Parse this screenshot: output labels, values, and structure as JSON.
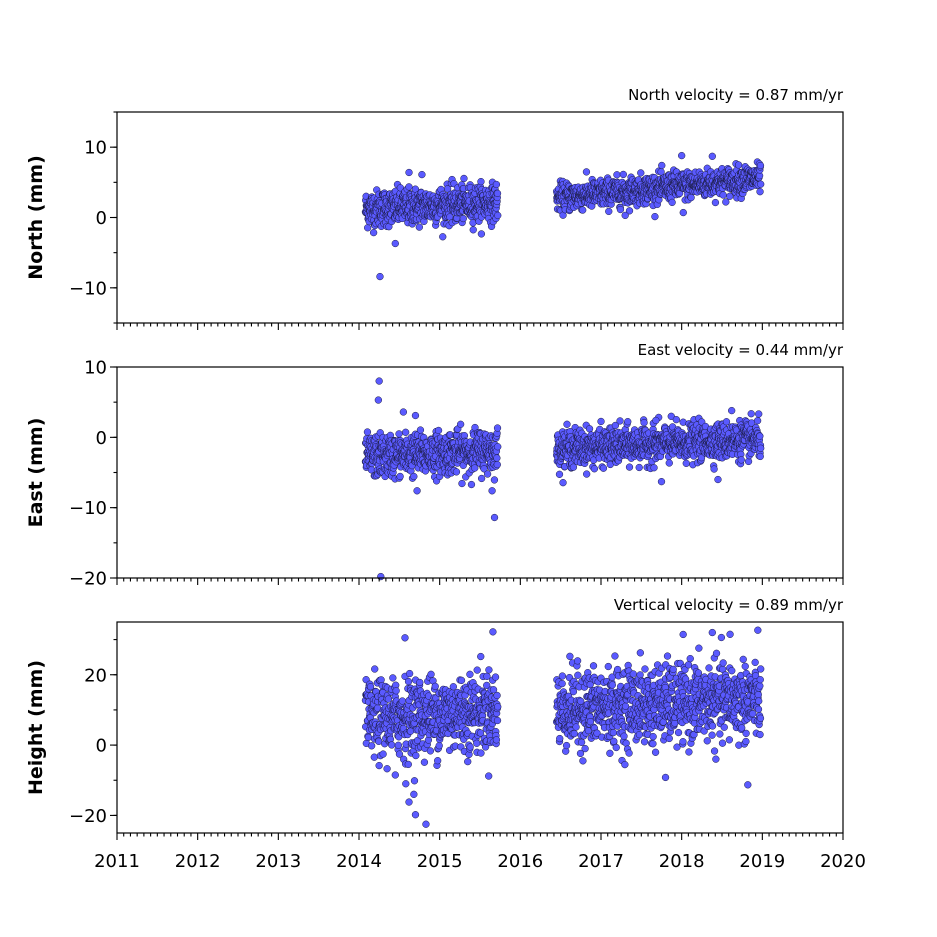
{
  "chart_data": [
    {
      "type": "scatter",
      "title": "North velocity = 0.87 mm/yr",
      "ylabel": "North (mm)",
      "xlim": [
        2011,
        2020
      ],
      "ylim": [
        -15,
        15
      ],
      "yticks": [
        -10,
        0,
        10
      ],
      "ytick_labels": [
        "−10",
        "0",
        "10"
      ],
      "xticks": [
        2011,
        2012,
        2013,
        2014,
        2015,
        2016,
        2017,
        2018,
        2019,
        2020
      ],
      "xtick_labels": [
        "",
        "",
        "",
        "",
        "",
        "",
        "",
        "",
        "",
        ""
      ],
      "color": "#5a5aff",
      "segments": [
        {
          "x_start": 2014.08,
          "x_end": 2015.72,
          "y_start": 1.2,
          "y_end": 2.2,
          "spread": 1.3
        },
        {
          "x_start": 2016.45,
          "x_end": 2018.98,
          "y_start": 2.8,
          "y_end": 5.6,
          "spread": 1.0
        }
      ],
      "outliers": [
        {
          "x": 2014.26,
          "y": -8.4
        },
        {
          "x": 2014.45,
          "y": -3.7
        },
        {
          "x": 2014.62,
          "y": 6.4
        },
        {
          "x": 2014.78,
          "y": 6.1
        },
        {
          "x": 2018.0,
          "y": 8.8
        },
        {
          "x": 2018.38,
          "y": 8.7
        },
        {
          "x": 2018.02,
          "y": 0.7
        },
        {
          "x": 2017.3,
          "y": 0.3
        }
      ]
    },
    {
      "type": "scatter",
      "title": "East velocity = 0.44 mm/yr",
      "ylabel": "East (mm)",
      "xlim": [
        2011,
        2020
      ],
      "ylim": [
        -20,
        10
      ],
      "yticks": [
        -20,
        -10,
        0,
        10
      ],
      "ytick_labels": [
        "−20",
        "−10",
        "0",
        "10"
      ],
      "xticks": [
        2011,
        2012,
        2013,
        2014,
        2015,
        2016,
        2017,
        2018,
        2019,
        2020
      ],
      "xtick_labels": [
        "",
        "",
        "",
        "",
        "",
        "",
        "",
        "",
        "",
        ""
      ],
      "color": "#5a5aff",
      "segments": [
        {
          "x_start": 2014.08,
          "x_end": 2015.72,
          "y_start": -2.8,
          "y_end": -1.8,
          "spread": 1.5
        },
        {
          "x_start": 2016.45,
          "x_end": 2018.98,
          "y_start": -1.6,
          "y_end": -0.3,
          "spread": 1.3
        }
      ],
      "outliers": [
        {
          "x": 2014.25,
          "y": 8.0
        },
        {
          "x": 2014.24,
          "y": 5.3
        },
        {
          "x": 2014.27,
          "y": -19.8
        },
        {
          "x": 2014.55,
          "y": 3.6
        },
        {
          "x": 2014.7,
          "y": 3.1
        },
        {
          "x": 2015.68,
          "y": -11.4
        },
        {
          "x": 2015.65,
          "y": -7.6
        },
        {
          "x": 2014.72,
          "y": -7.6
        },
        {
          "x": 2017.75,
          "y": -6.3
        },
        {
          "x": 2018.45,
          "y": -6.0
        },
        {
          "x": 2018.62,
          "y": 3.8
        },
        {
          "x": 2017.68,
          "y": 2.4
        }
      ]
    },
    {
      "type": "scatter",
      "title": "Vertical velocity = 0.89 mm/yr",
      "ylabel": "Height (mm)",
      "xlim": [
        2011,
        2020
      ],
      "ylim": [
        -25,
        35
      ],
      "yticks": [
        -20,
        0,
        20
      ],
      "ytick_labels": [
        "−20",
        "0",
        "20"
      ],
      "xticks": [
        2011,
        2012,
        2013,
        2014,
        2015,
        2016,
        2017,
        2018,
        2019,
        2020
      ],
      "xtick_labels": [
        "2011",
        "2012",
        "2013",
        "2014",
        "2015",
        "2016",
        "2017",
        "2018",
        "2019",
        "2020"
      ],
      "color": "#5a5aff",
      "segments": [
        {
          "x_start": 2014.08,
          "x_end": 2015.72,
          "y_start": 7.0,
          "y_end": 10.0,
          "spread": 5.5
        },
        {
          "x_start": 2016.45,
          "x_end": 2018.98,
          "y_start": 10.0,
          "y_end": 13.0,
          "spread": 5.5
        }
      ],
      "outliers": [
        {
          "x": 2014.57,
          "y": 30.5
        },
        {
          "x": 2015.66,
          "y": 32.2
        },
        {
          "x": 2018.38,
          "y": 32.0
        },
        {
          "x": 2018.6,
          "y": 31.5
        },
        {
          "x": 2014.83,
          "y": -22.5
        },
        {
          "x": 2014.7,
          "y": -19.8
        },
        {
          "x": 2014.62,
          "y": -16.2
        },
        {
          "x": 2014.68,
          "y": -14.0
        },
        {
          "x": 2014.58,
          "y": -11.0
        },
        {
          "x": 2018.82,
          "y": -11.3
        },
        {
          "x": 2017.8,
          "y": -9.2
        },
        {
          "x": 2014.45,
          "y": -8.5
        }
      ]
    }
  ]
}
